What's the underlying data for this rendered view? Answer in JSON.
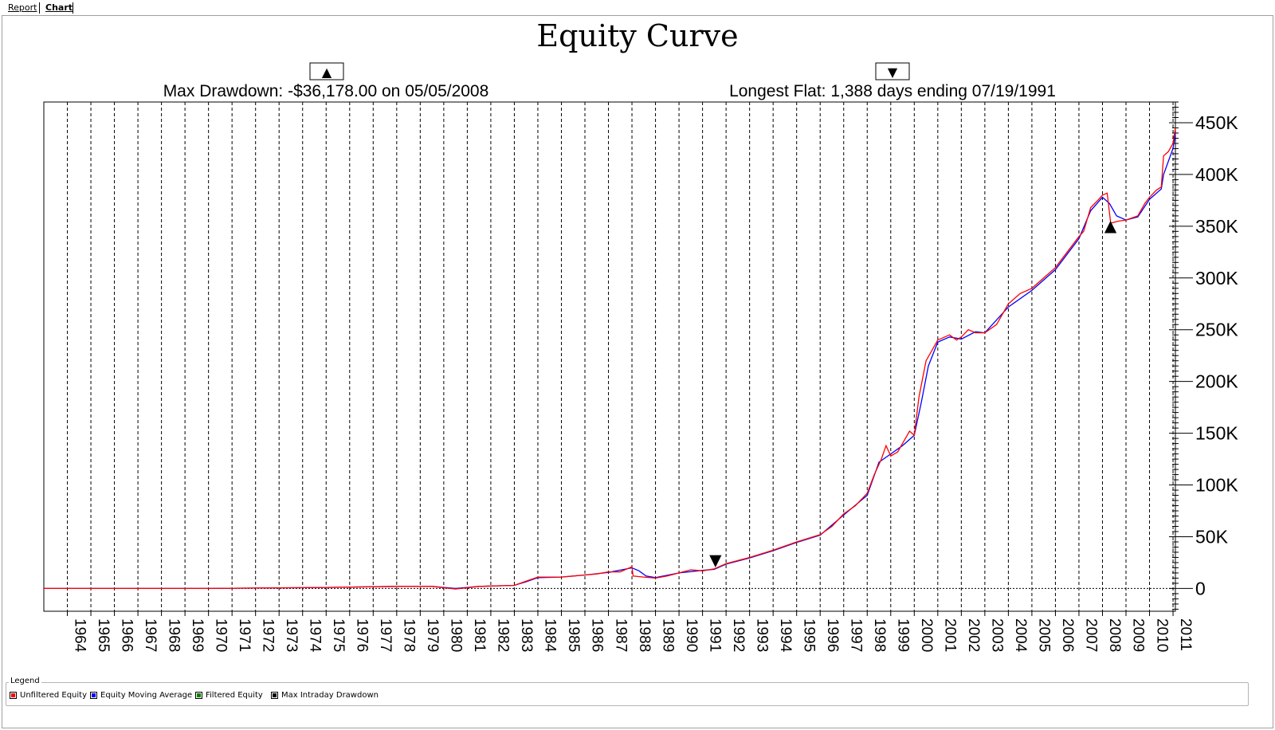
{
  "tabs": [
    {
      "label": "Report"
    },
    {
      "label": "Chart"
    }
  ],
  "legend": {
    "title": "Legend",
    "items": [
      {
        "label": "Unfiltered Equity",
        "color": "#ff0000"
      },
      {
        "label": "Equity Moving Average",
        "color": "#0000ff"
      },
      {
        "label": "Filtered Equity",
        "color": "#008000"
      },
      {
        "label": "Max Intraday Drawdown",
        "color": "#000000"
      }
    ]
  },
  "chart_data": {
    "type": "line",
    "title": "Equity Curve",
    "annotations": {
      "max_drawdown": {
        "text": "Max Drawdown: -$36,178.00 on 05/05/2008",
        "marker": "▲",
        "x": 2008.34,
        "y": 353000
      },
      "longest_flat": {
        "text": "Longest Flat: 1,388 days ending 07/19/1991",
        "marker": "▼",
        "x": 1991.55,
        "y": 24000
      }
    },
    "x_tick_labels": [
      "1964",
      "1965",
      "1966",
      "1967",
      "1968",
      "1969",
      "1970",
      "1971",
      "1972",
      "1973",
      "1974",
      "1975",
      "1976",
      "1977",
      "1978",
      "1979",
      "1980",
      "1981",
      "1982",
      "1983",
      "1984",
      "1985",
      "1986",
      "1987",
      "1988",
      "1989",
      "1990",
      "1991",
      "1992",
      "1993",
      "1994",
      "1995",
      "1996",
      "1997",
      "1998",
      "1999",
      "2000",
      "2001",
      "2002",
      "2003",
      "2004",
      "2005",
      "2006",
      "2007",
      "2008",
      "2009",
      "2010",
      "2011"
    ],
    "y_tick_labels": [
      "0",
      "50K",
      "100K",
      "150K",
      "200K",
      "250K",
      "300K",
      "350K",
      "400K",
      "450K"
    ],
    "xlim": [
      1963,
      2011.1
    ],
    "ylim": [
      -22000,
      470000
    ],
    "grid": true,
    "legend_position": "bottom",
    "series": [
      {
        "name": "Unfiltered Equity",
        "color": "#ff0000",
        "x": [
          1963.0,
          1970.0,
          1975.0,
          1978.0,
          1979.5,
          1980.5,
          1981.5,
          1983.0,
          1983.5,
          1984.0,
          1985.0,
          1985.5,
          1986.0,
          1986.5,
          1987.0,
          1987.5,
          1988.0,
          1988.05,
          1988.5,
          1989.0,
          1989.5,
          1990.0,
          1990.5,
          1991.0,
          1991.5,
          1992.0,
          1993.0,
          1994.0,
          1995.0,
          1996.0,
          1996.5,
          1997.0,
          1997.5,
          1998.0,
          1998.3,
          1998.6,
          1998.8,
          1999.0,
          1999.3,
          1999.5,
          1999.8,
          2000.0,
          2000.2,
          2000.5,
          2001.0,
          2001.5,
          2001.8,
          2002.0,
          2002.3,
          2002.6,
          2003.0,
          2003.5,
          2004.0,
          2004.5,
          2005.0,
          2005.5,
          2006.0,
          2006.5,
          2007.0,
          2007.2,
          2007.5,
          2007.8,
          2008.0,
          2008.2,
          2008.35,
          2008.7,
          2009.0,
          2009.5,
          2009.8,
          2010.0,
          2010.3,
          2010.5,
          2010.6,
          2010.8,
          2011.0,
          2011.1
        ],
        "y": [
          0,
          0,
          1000,
          2000,
          2000,
          -500,
          2000,
          3000,
          7000,
          11000,
          11000,
          12000,
          13000,
          14000,
          16000,
          16000,
          21000,
          12000,
          11000,
          10000,
          12000,
          15000,
          18000,
          17000,
          19000,
          24000,
          30000,
          37000,
          45000,
          52000,
          60000,
          72000,
          80000,
          92000,
          110000,
          125000,
          138000,
          128000,
          132000,
          140000,
          152000,
          148000,
          185000,
          220000,
          240000,
          245000,
          240000,
          243000,
          250000,
          247000,
          247000,
          255000,
          275000,
          285000,
          290000,
          300000,
          310000,
          325000,
          340000,
          345000,
          368000,
          375000,
          380000,
          382000,
          353000,
          355000,
          356000,
          360000,
          372000,
          378000,
          385000,
          388000,
          418000,
          422000,
          430000,
          445000
        ]
      },
      {
        "name": "Equity Moving Average",
        "color": "#0000ff",
        "x": [
          1963.0,
          1970.0,
          1975.0,
          1978.0,
          1979.5,
          1980.5,
          1981.5,
          1983.0,
          1983.5,
          1984.0,
          1985.0,
          1986.0,
          1987.0,
          1988.0,
          1988.3,
          1988.6,
          1989.0,
          1990.0,
          1991.0,
          1991.5,
          1992.0,
          1993.0,
          1994.0,
          1995.0,
          1996.0,
          1997.0,
          1998.0,
          1998.5,
          1999.0,
          1999.5,
          2000.0,
          2000.3,
          2000.6,
          2001.0,
          2001.5,
          2002.0,
          2002.6,
          2003.0,
          2004.0,
          2005.0,
          2006.0,
          2007.0,
          2007.5,
          2008.0,
          2008.3,
          2008.6,
          2009.0,
          2009.5,
          2010.0,
          2010.5,
          2010.6,
          2011.0,
          2011.1
        ],
        "y": [
          0,
          0,
          1000,
          2000,
          2000,
          0,
          2000,
          3000,
          6500,
          10500,
          11000,
          13000,
          15500,
          20000,
          17000,
          12000,
          10500,
          15000,
          17500,
          18500,
          23500,
          29500,
          36500,
          44500,
          51500,
          71000,
          90000,
          122000,
          130000,
          138000,
          148000,
          180000,
          215000,
          238000,
          243000,
          241000,
          248000,
          247000,
          272000,
          288000,
          308000,
          338000,
          365000,
          378000,
          372000,
          360000,
          356000,
          359000,
          376000,
          386000,
          400000,
          425000,
          440000
        ]
      }
    ]
  }
}
